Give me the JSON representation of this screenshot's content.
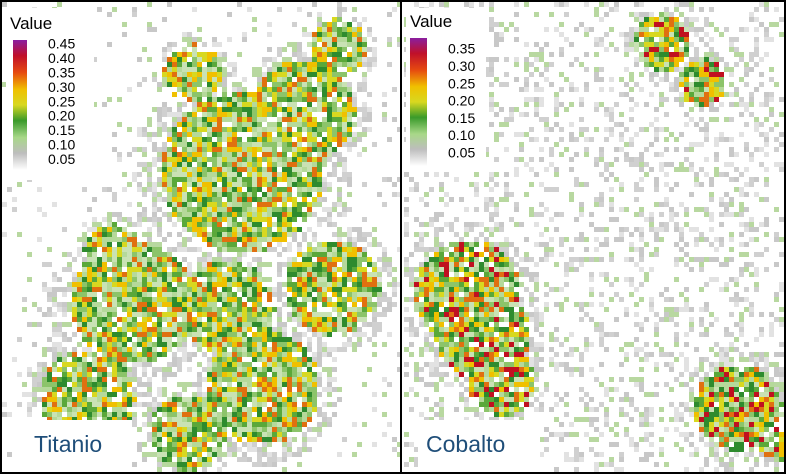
{
  "panels": [
    {
      "legend": {
        "title": "Value",
        "labels": [
          "0.45",
          "0.40",
          "0.35",
          "0.30",
          "0.25",
          "0.20",
          "0.15",
          "0.10",
          "0.05"
        ]
      },
      "label": "Titanio"
    },
    {
      "legend": {
        "title": "Value",
        "labels": [
          "0.35",
          "0.30",
          "0.25",
          "0.20",
          "0.15",
          "0.10",
          "0.05"
        ]
      },
      "label": "Cobalto"
    }
  ]
}
